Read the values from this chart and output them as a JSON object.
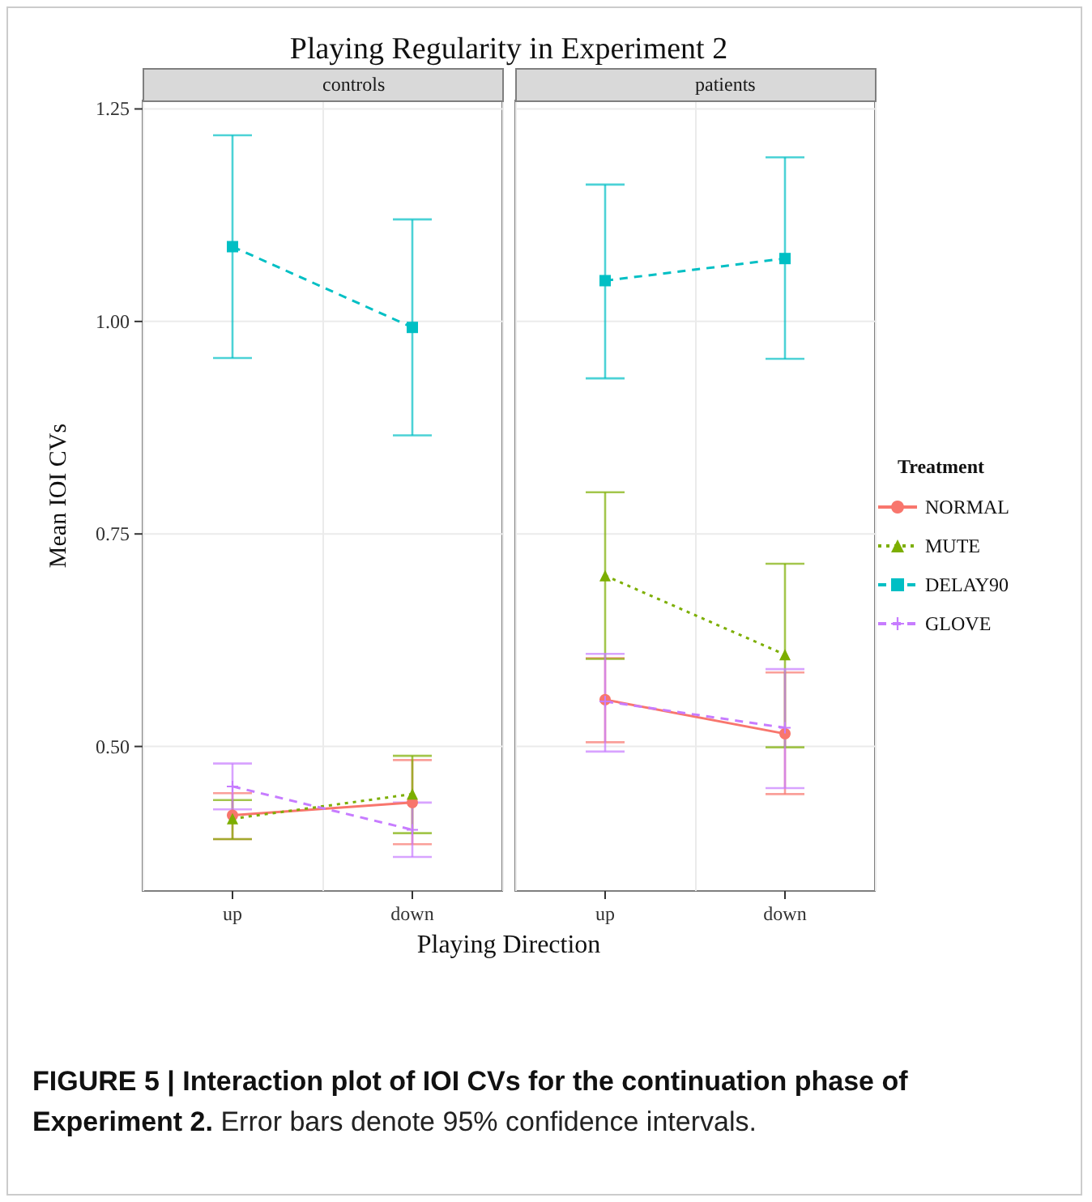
{
  "chart_data": [
    {
      "type": "line",
      "title": "Playing Regularity in Experiment 2",
      "subtitle": "controls",
      "xlabel": "Playing Direction",
      "ylabel": "Mean IOI CVs",
      "annotations": [
        "FIGURE 5 | Interaction plot of IOI CVs for the continuation phase of Experiment 2.",
        "Error bars denote 95% confidence intervals."
      ],
      "categories": [
        "up",
        "down"
      ],
      "series": [
        {
          "color": "#f8766d",
          "marker": "circle",
          "line_style": "solid",
          "values": [
            0.419,
            0.434
          ],
          "errors": [
            [
              0.391,
              0.445
            ],
            [
              0.385,
              0.484
            ]
          ]
        },
        {
          "color": "#7cae00",
          "marker": "triangle",
          "line_style": "dotted",
          "values": [
            0.415,
            0.444
          ],
          "errors": [
            [
              0.391,
              0.437
            ],
            [
              0.398,
              0.489
            ]
          ]
        },
        {
          "color": "#00bfc4",
          "marker": "square",
          "line_style": "dashed",
          "values": [
            1.088,
            0.993
          ],
          "errors": [
            [
              0.957,
              1.219
            ],
            [
              0.866,
              1.12
            ]
          ]
        },
        {
          "color": "#c77cff",
          "marker": "cross",
          "line_style": "dashed",
          "values": [
            0.453,
            0.402
          ],
          "errors": [
            [
              0.426,
              0.48
            ],
            [
              0.37,
              0.434
            ]
          ]
        }
      ],
      "ylim": [
        0.33,
        1.26
      ],
      "yticks": [
        {
          "value": 0.5,
          "label": "0.50"
        },
        0.75,
        {
          "value": 1,
          "label": "1.00"
        },
        1.25
      ],
      "grid": true,
      "legend": false
    },
    {
      "type": "line",
      "subtitle": "patients",
      "legend_title": "Treatment",
      "categories": [
        "up",
        "down"
      ],
      "series": [
        {
          "name": "NORMAL",
          "color": "#f8766d",
          "marker": "circle",
          "line_style": "solid",
          "values": [
            0.555,
            0.515
          ],
          "errors": [
            [
              0.505,
              0.604
            ],
            [
              0.444,
              0.587
            ]
          ]
        },
        {
          "name": "MUTE",
          "color": "#7cae00",
          "marker": "triangle",
          "line_style": "dotted",
          "values": [
            0.701,
            0.608
          ],
          "errors": [
            [
              0.603,
              0.799
            ],
            [
              0.499,
              0.715
            ]
          ]
        },
        {
          "name": "DELAY90",
          "color": "#00bfc4",
          "marker": "square",
          "line_style": "dashed",
          "values": [
            1.048,
            1.074
          ],
          "errors": [
            [
              0.933,
              1.161
            ],
            [
              0.956,
              1.193
            ]
          ]
        },
        {
          "name": "GLOVE",
          "color": "#c77cff",
          "marker": "cross",
          "line_style": "dashed",
          "values": [
            0.553,
            0.522
          ],
          "errors": [
            [
              0.494,
              0.609
            ],
            [
              0.451,
              0.591
            ]
          ]
        }
      ],
      "ylim": [
        0.33,
        1.26
      ],
      "yticks": [
        0.5,
        0.75,
        1,
        1.25
      ],
      "grid": true,
      "legend": "right",
      "tick_labels": "x"
    }
  ]
}
